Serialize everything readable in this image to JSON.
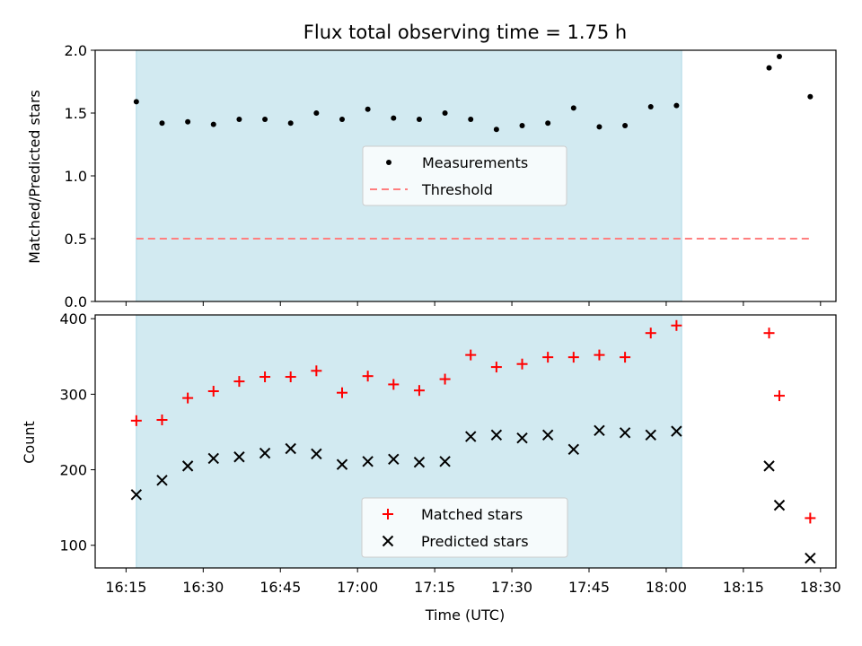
{
  "chart_data": [
    {
      "type": "scatter",
      "title": "Flux total observing time = 1.75 h",
      "ylabel": "Matched/Predicted stars",
      "xlabel": "",
      "x_unit": "time of day (HH:MM, UTC)",
      "xlim": [
        "16:09",
        "18:33"
      ],
      "ylim": [
        0.0,
        2.0
      ],
      "yticks": [
        "0.0",
        "0.5",
        "1.0",
        "1.5",
        "2.0"
      ],
      "shaded_region": {
        "x_start": "16:17",
        "x_end": "18:03",
        "color": "#add8e6"
      },
      "legend": {
        "placement": "center",
        "entries": [
          "Measurements",
          "Threshold"
        ]
      },
      "series": [
        {
          "name": "Measurements",
          "marker": "dot",
          "color": "#000000",
          "points": [
            [
              "16:17",
              1.59
            ],
            [
              "16:22",
              1.42
            ],
            [
              "16:27",
              1.43
            ],
            [
              "16:32",
              1.41
            ],
            [
              "16:37",
              1.45
            ],
            [
              "16:42",
              1.45
            ],
            [
              "16:47",
              1.42
            ],
            [
              "16:52",
              1.5
            ],
            [
              "16:57",
              1.45
            ],
            [
              "17:02",
              1.53
            ],
            [
              "17:07",
              1.46
            ],
            [
              "17:12",
              1.45
            ],
            [
              "17:17",
              1.5
            ],
            [
              "17:22",
              1.45
            ],
            [
              "17:27",
              1.37
            ],
            [
              "17:32",
              1.4
            ],
            [
              "17:37",
              1.42
            ],
            [
              "17:42",
              1.54
            ],
            [
              "17:47",
              1.39
            ],
            [
              "17:52",
              1.4
            ],
            [
              "17:57",
              1.55
            ],
            [
              "18:02",
              1.56
            ],
            [
              "18:20",
              1.86
            ],
            [
              "18:22",
              1.95
            ],
            [
              "18:28",
              1.63
            ]
          ]
        },
        {
          "name": "Threshold",
          "line_style": "dashed",
          "color": "#ff7f7f",
          "points": [
            [
              "16:17",
              0.5
            ],
            [
              "18:28",
              0.5
            ]
          ]
        }
      ]
    },
    {
      "type": "scatter",
      "title": "",
      "ylabel": "Count",
      "xlabel": "Time (UTC)",
      "x_unit": "time of day (HH:MM, UTC)",
      "xlim": [
        "16:09",
        "18:33"
      ],
      "ylim": [
        70,
        405
      ],
      "xticks": [
        "16:15",
        "16:30",
        "16:45",
        "17:00",
        "17:15",
        "17:30",
        "17:45",
        "18:00",
        "18:15",
        "18:30"
      ],
      "yticks": [
        "100",
        "200",
        "300",
        "400"
      ],
      "shaded_region": {
        "x_start": "16:17",
        "x_end": "18:03",
        "color": "#add8e6"
      },
      "legend": {
        "placement": "lower center",
        "entries": [
          "Matched stars",
          "Predicted stars"
        ]
      },
      "series": [
        {
          "name": "Matched stars",
          "marker": "plus",
          "color": "#ff0000",
          "points": [
            [
              "16:17",
              265
            ],
            [
              "16:22",
              266
            ],
            [
              "16:27",
              295
            ],
            [
              "16:32",
              304
            ],
            [
              "16:37",
              317
            ],
            [
              "16:42",
              323
            ],
            [
              "16:47",
              323
            ],
            [
              "16:52",
              331
            ],
            [
              "16:57",
              302
            ],
            [
              "17:02",
              324
            ],
            [
              "17:07",
              313
            ],
            [
              "17:12",
              305
            ],
            [
              "17:17",
              320
            ],
            [
              "17:22",
              352
            ],
            [
              "17:27",
              336
            ],
            [
              "17:32",
              340
            ],
            [
              "17:37",
              349
            ],
            [
              "17:42",
              349
            ],
            [
              "17:47",
              352
            ],
            [
              "17:52",
              349
            ],
            [
              "17:57",
              381
            ],
            [
              "18:02",
              391
            ],
            [
              "18:20",
              381
            ],
            [
              "18:22",
              298
            ],
            [
              "18:28",
              136
            ]
          ]
        },
        {
          "name": "Predicted stars",
          "marker": "x",
          "color": "#000000",
          "points": [
            [
              "16:17",
              167
            ],
            [
              "16:22",
              186
            ],
            [
              "16:27",
              205
            ],
            [
              "16:32",
              215
            ],
            [
              "16:37",
              217
            ],
            [
              "16:42",
              222
            ],
            [
              "16:47",
              228
            ],
            [
              "16:52",
              221
            ],
            [
              "16:57",
              207
            ],
            [
              "17:02",
              211
            ],
            [
              "17:07",
              214
            ],
            [
              "17:12",
              210
            ],
            [
              "17:17",
              211
            ],
            [
              "17:22",
              244
            ],
            [
              "17:27",
              246
            ],
            [
              "17:32",
              242
            ],
            [
              "17:37",
              246
            ],
            [
              "17:42",
              227
            ],
            [
              "17:47",
              252
            ],
            [
              "17:52",
              249
            ],
            [
              "17:57",
              246
            ],
            [
              "18:02",
              251
            ],
            [
              "18:20",
              205
            ],
            [
              "18:22",
              153
            ],
            [
              "18:28",
              83
            ]
          ]
        }
      ]
    }
  ]
}
